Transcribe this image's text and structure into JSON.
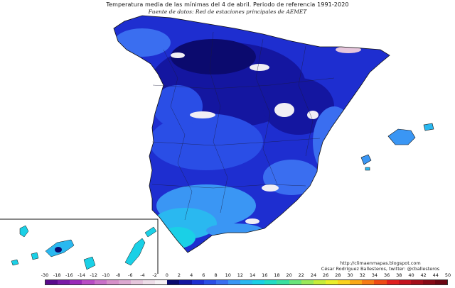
{
  "title": "Temperatura media de las mínimas del 4 de abril. Periodo de referencia 1991-2020",
  "subtitle": "Fuente de datos: Red de estaciones principales de AEMET",
  "credits": {
    "url": "http://climaenmapas.blogspot.com",
    "author": "César Rodríguez Ballesteros, twitter: @cballesteros"
  },
  "legend": {
    "labels": [
      "-30",
      "-18",
      "-16",
      "-14",
      "-12",
      "-10",
      "-8",
      "-6",
      "-4",
      "-2",
      "0",
      "2",
      "4",
      "6",
      "8",
      "10",
      "12",
      "14",
      "16",
      "18",
      "20",
      "22",
      "24",
      "26",
      "28",
      "30",
      "32",
      "34",
      "36",
      "38",
      "40",
      "42",
      "44",
      "50"
    ],
    "colors": [
      "#5a0a8c",
      "#7a1aa6",
      "#9a2ab8",
      "#b84cc4",
      "#c970c8",
      "#d690c8",
      "#dca8d0",
      "#e6c6dc",
      "#eedde8",
      "#f6f0f4",
      "#0b0a6e",
      "#1416a0",
      "#1e2ed0",
      "#2a4ee6",
      "#3a6ef0",
      "#3a96f4",
      "#2ab8f0",
      "#1ad0e6",
      "#22dcc4",
      "#3ae0a0",
      "#6ae47a",
      "#9ae85a",
      "#c6ec3a",
      "#eaee2a",
      "#fad21e",
      "#faa816",
      "#f67a14",
      "#ee4a14",
      "#e01e1e",
      "#c4121e",
      "#a40e1a",
      "#860a16",
      "#6a0612"
    ]
  }
}
